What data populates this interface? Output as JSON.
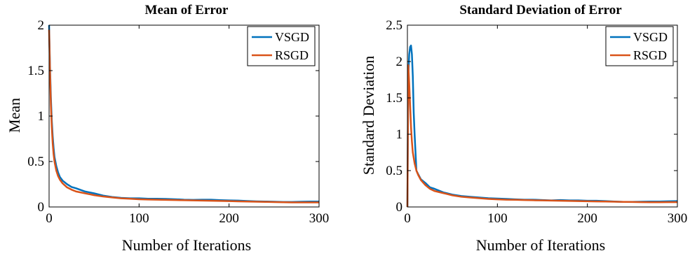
{
  "chart_data": [
    {
      "type": "line",
      "title": "Mean of Error",
      "xlabel": "Number of Iterations",
      "ylabel": "Mean",
      "xlim": [
        0,
        300
      ],
      "ylim": [
        0,
        2
      ],
      "xticks": [
        "0",
        "100",
        "200",
        "300"
      ],
      "yticks": [
        "0",
        "0.5",
        "1",
        "1.5",
        "2"
      ],
      "grid": false,
      "legend": "top-right",
      "series": [
        {
          "name": "VSGD",
          "color": "#0072BD",
          "x": [
            0,
            1,
            2,
            3,
            4,
            5,
            6,
            8,
            10,
            12,
            15,
            20,
            25,
            30,
            40,
            50,
            60,
            70,
            80,
            90,
            100,
            110,
            120,
            130,
            140,
            150,
            160,
            170,
            180,
            190,
            200,
            210,
            220,
            230,
            240,
            250,
            260,
            270,
            280,
            290,
            300
          ],
          "y": [
            2.0,
            1.55,
            1.2,
            0.95,
            0.78,
            0.65,
            0.55,
            0.45,
            0.38,
            0.33,
            0.29,
            0.25,
            0.22,
            0.205,
            0.17,
            0.15,
            0.125,
            0.11,
            0.1,
            0.095,
            0.095,
            0.09,
            0.09,
            0.088,
            0.085,
            0.08,
            0.078,
            0.08,
            0.08,
            0.075,
            0.072,
            0.07,
            0.065,
            0.062,
            0.06,
            0.058,
            0.055,
            0.055,
            0.058,
            0.06,
            0.06
          ]
        },
        {
          "name": "RSGD",
          "color": "#D95319",
          "x": [
            0,
            1,
            2,
            3,
            4,
            5,
            6,
            8,
            10,
            12,
            15,
            20,
            25,
            30,
            40,
            50,
            60,
            70,
            80,
            90,
            100,
            110,
            120,
            130,
            140,
            150,
            160,
            170,
            180,
            190,
            200,
            210,
            220,
            230,
            240,
            250,
            260,
            270,
            280,
            290,
            300
          ],
          "y": [
            1.95,
            1.5,
            1.12,
            0.88,
            0.7,
            0.58,
            0.5,
            0.4,
            0.34,
            0.3,
            0.26,
            0.215,
            0.19,
            0.17,
            0.15,
            0.13,
            0.115,
            0.105,
            0.095,
            0.09,
            0.085,
            0.082,
            0.08,
            0.078,
            0.076,
            0.074,
            0.072,
            0.07,
            0.068,
            0.066,
            0.064,
            0.062,
            0.06,
            0.058,
            0.056,
            0.054,
            0.052,
            0.05,
            0.05,
            0.05,
            0.05
          ]
        }
      ]
    },
    {
      "type": "line",
      "title": "Standard Deviation of Error",
      "xlabel": "Number of Iterations",
      "ylabel": "Standard Deviation",
      "xlim": [
        0,
        300
      ],
      "ylim": [
        0,
        2.5
      ],
      "xticks": [
        "0",
        "100",
        "200",
        "300"
      ],
      "yticks": [
        "0",
        "0.5",
        "1",
        "1.5",
        "2",
        "2.5"
      ],
      "grid": false,
      "legend": "top-right",
      "series": [
        {
          "name": "VSGD",
          "color": "#0072BD",
          "x": [
            0,
            1,
            2,
            3,
            4,
            5,
            6,
            7,
            8,
            10,
            12,
            15,
            20,
            25,
            30,
            40,
            50,
            60,
            70,
            80,
            90,
            100,
            110,
            120,
            130,
            140,
            150,
            160,
            170,
            180,
            190,
            200,
            210,
            220,
            230,
            240,
            250,
            260,
            270,
            280,
            290,
            300
          ],
          "y": [
            0.0,
            1.8,
            2.1,
            2.2,
            2.22,
            2.1,
            1.8,
            1.3,
            1.0,
            0.5,
            0.45,
            0.38,
            0.33,
            0.27,
            0.25,
            0.2,
            0.17,
            0.15,
            0.14,
            0.13,
            0.12,
            0.115,
            0.11,
            0.105,
            0.1,
            0.1,
            0.095,
            0.09,
            0.095,
            0.09,
            0.09,
            0.085,
            0.085,
            0.08,
            0.075,
            0.07,
            0.07,
            0.072,
            0.075,
            0.075,
            0.078,
            0.08
          ]
        },
        {
          "name": "RSGD",
          "color": "#D95319",
          "x": [
            0,
            1,
            2,
            3,
            4,
            5,
            6,
            8,
            10,
            12,
            15,
            20,
            25,
            30,
            40,
            50,
            60,
            70,
            80,
            90,
            100,
            110,
            120,
            130,
            140,
            150,
            160,
            170,
            180,
            190,
            200,
            210,
            220,
            230,
            240,
            250,
            260,
            270,
            280,
            290,
            300
          ],
          "y": [
            0.0,
            1.95,
            1.7,
            1.4,
            1.1,
            0.9,
            0.75,
            0.6,
            0.5,
            0.44,
            0.37,
            0.3,
            0.25,
            0.22,
            0.19,
            0.16,
            0.14,
            0.13,
            0.12,
            0.11,
            0.105,
            0.1,
            0.098,
            0.095,
            0.092,
            0.09,
            0.088,
            0.085,
            0.083,
            0.08,
            0.078,
            0.076,
            0.074,
            0.072,
            0.07,
            0.068,
            0.066,
            0.065,
            0.065,
            0.066,
            0.066
          ]
        }
      ]
    }
  ]
}
